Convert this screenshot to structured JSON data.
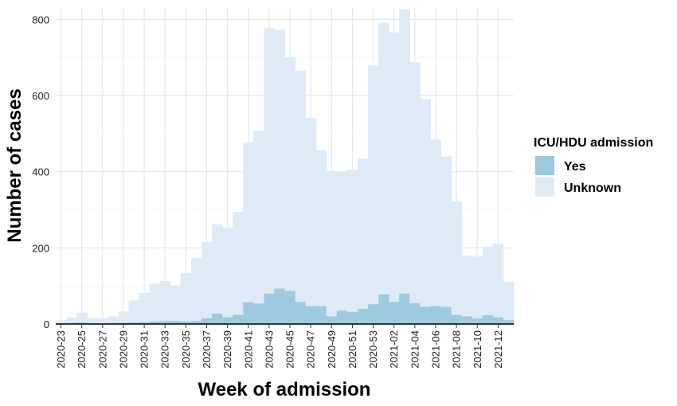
{
  "chart_data": {
    "type": "bar",
    "stacked": true,
    "xlabel": "Week of admission",
    "ylabel": "Number of cases",
    "ylim": [
      0,
      830
    ],
    "y_ticks": [
      0,
      200,
      400,
      600,
      800
    ],
    "grid": true,
    "legend": {
      "title": "ICU/HDU admission",
      "position": "right",
      "entries": [
        "Yes",
        "Unknown"
      ]
    },
    "categories": [
      "2020-23",
      "2020-24",
      "2020-25",
      "2020-26",
      "2020-27",
      "2020-28",
      "2020-29",
      "2020-30",
      "2020-31",
      "2020-32",
      "2020-33",
      "2020-34",
      "2020-35",
      "2020-36",
      "2020-37",
      "2020-38",
      "2020-39",
      "2020-40",
      "2020-41",
      "2020-42",
      "2020-43",
      "2020-44",
      "2020-45",
      "2020-46",
      "2020-47",
      "2020-48",
      "2020-49",
      "2020-50",
      "2020-51",
      "2020-52",
      "2020-53",
      "2021-01",
      "2021-02",
      "2021-03",
      "2021-04",
      "2021-05",
      "2021-06",
      "2021-07",
      "2021-08",
      "2021-09",
      "2021-10",
      "2021-11",
      "2021-12",
      "2021-13"
    ],
    "tick_labels": [
      "2020-23",
      "2020-25",
      "2020-27",
      "2020-29",
      "2020-31",
      "2020-33",
      "2020-35",
      "2020-37",
      "2020-39",
      "2020-41",
      "2020-43",
      "2020-45",
      "2020-47",
      "2020-49",
      "2020-51",
      "2020-53",
      "2021-02",
      "2021-04",
      "2021-06",
      "2021-08",
      "2021-10",
      "2021-12"
    ],
    "series": [
      {
        "name": "Yes",
        "color": "#9ecae1",
        "values": [
          2,
          3,
          4,
          2,
          2,
          3,
          3,
          4,
          5,
          7,
          8,
          8,
          7,
          8,
          15,
          27,
          18,
          24,
          57,
          54,
          80,
          93,
          87,
          58,
          47,
          47,
          20,
          35,
          32,
          40,
          52,
          78,
          58,
          80,
          55,
          45,
          47,
          45,
          24,
          20,
          15,
          23,
          18,
          11
        ]
      },
      {
        "name": "Unknown",
        "color": "#deebf7",
        "values": [
          8,
          14,
          26,
          13,
          13,
          17,
          30,
          58,
          77,
          99,
          105,
          93,
          127,
          165,
          200,
          235,
          235,
          270,
          420,
          453,
          697,
          680,
          614,
          608,
          494,
          409,
          382,
          364,
          374,
          394,
          627,
          713,
          708,
          747,
          632,
          546,
          437,
          395,
          298,
          160,
          162,
          180,
          193,
          100
        ]
      }
    ]
  }
}
